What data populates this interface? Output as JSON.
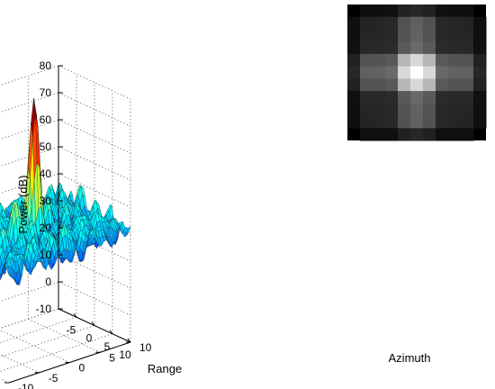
{
  "chart_data": {
    "type": "surface",
    "title": "",
    "xlabel": "Range",
    "ylabel": "Azimuth",
    "zlabel": "Power (dB)",
    "xlim": [
      -10,
      10
    ],
    "ylim": [
      -10,
      10
    ],
    "zlim": [
      -10,
      80
    ],
    "xticks": [
      "-5",
      "0",
      "5",
      "10"
    ],
    "yticks": [
      "-10",
      "-5",
      "0",
      "5",
      "10"
    ],
    "zticks": [
      "-10",
      "0",
      "10",
      "20",
      "30",
      "40",
      "50",
      "60",
      "70",
      "80"
    ],
    "grid": true,
    "colormap": "jet",
    "peak": {
      "x": 0,
      "y": 0,
      "z": 75
    },
    "noise_floor_z": 32,
    "inset": {
      "type": "heatmap",
      "description_colormap": "gray",
      "background": "#000000"
    }
  }
}
